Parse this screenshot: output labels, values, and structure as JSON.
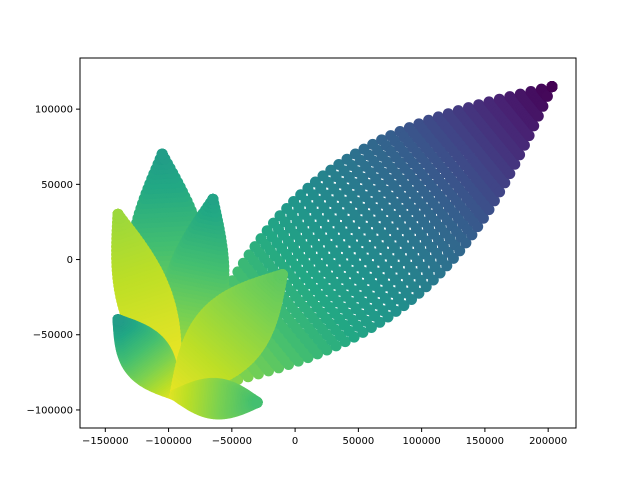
{
  "chart_data": {
    "type": "scatter",
    "title": "",
    "xlabel": "",
    "ylabel": "",
    "xlim": [
      -170000,
      222000
    ],
    "ylim": [
      -112000,
      134000
    ],
    "x_ticks": [
      -150000,
      -100000,
      -50000,
      0,
      50000,
      100000,
      150000,
      200000
    ],
    "y_ticks": [
      -100000,
      -50000,
      0,
      50000,
      100000
    ],
    "x_tick_labels": [
      "−150000",
      "−100000",
      "−50000",
      "0",
      "50000",
      "100000",
      "150000",
      "200000"
    ],
    "y_tick_labels": [
      "−100000",
      "−50000",
      "0",
      "50000",
      "100000"
    ],
    "colormap": "viridis",
    "grid": false,
    "legend": "none",
    "marker": "circle",
    "petals": [
      {
        "from": [
          -95000,
          -90000
        ],
        "to": [
          203000,
          115000
        ],
        "width": 60000,
        "color_start": 0.93,
        "color_end": 0.0
      },
      {
        "from": [
          -95000,
          -90000
        ],
        "to": [
          -105000,
          70000
        ],
        "width": 30000,
        "color_start": 0.95,
        "color_end": 0.55
      },
      {
        "from": [
          -95000,
          -90000
        ],
        "to": [
          -65000,
          40000
        ],
        "width": 22000,
        "color_start": 0.95,
        "color_end": 0.58
      },
      {
        "from": [
          -95000,
          -90000
        ],
        "to": [
          -140000,
          30000
        ],
        "width": 18000,
        "color_start": 1.0,
        "color_end": 0.85
      },
      {
        "from": [
          -95000,
          -90000
        ],
        "to": [
          -140000,
          -40000
        ],
        "width": 16000,
        "color_start": 0.97,
        "color_end": 0.55
      },
      {
        "from": [
          -95000,
          -90000
        ],
        "to": [
          -10000,
          -10000
        ],
        "width": 25000,
        "color_start": 0.97,
        "color_end": 0.75
      },
      {
        "from": [
          -95000,
          -90000
        ],
        "to": [
          -30000,
          -95000
        ],
        "width": 12000,
        "color_start": 0.95,
        "color_end": 0.7
      }
    ]
  }
}
